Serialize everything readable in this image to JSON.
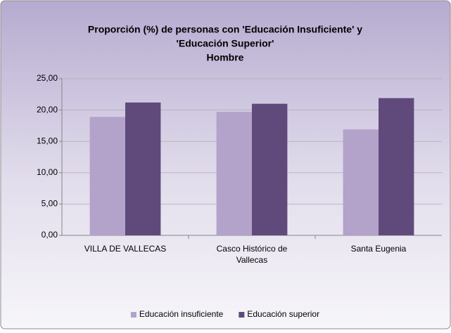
{
  "chart_data": {
    "type": "bar",
    "title": [
      "Proporción (%) de personas con 'Educación Insuficiente' y",
      "'Educación Superior'",
      "Hombre"
    ],
    "categories": [
      "VILLA DE VALLECAS",
      "Casco Histórico de Vallecas",
      "Santa Eugenia"
    ],
    "series": [
      {
        "name": "Educación insuficiente",
        "color": "#b3a2c9",
        "values": [
          18.9,
          19.7,
          16.9
        ]
      },
      {
        "name": "Educación superior",
        "color": "#604a7b",
        "values": [
          21.2,
          21.0,
          21.9
        ]
      }
    ],
    "ylim": [
      0,
      25
    ],
    "yticks": [
      {
        "value": 0,
        "label": "0,00"
      },
      {
        "value": 5,
        "label": "5,00"
      },
      {
        "value": 10,
        "label": "10,00"
      },
      {
        "value": 15,
        "label": "15,00"
      },
      {
        "value": 20,
        "label": "20,00"
      },
      {
        "value": 25,
        "label": "25,00"
      }
    ],
    "grid": true,
    "legend": "bottom"
  }
}
